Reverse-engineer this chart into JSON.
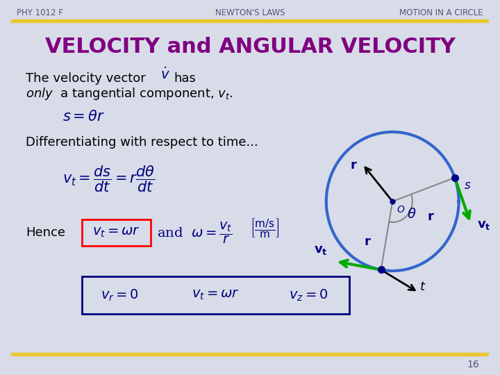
{
  "bg_color": "#d8dce8",
  "header_bar_color": "#e8c830",
  "title_text": "VELOCITY and ANGULAR VELOCITY",
  "title_color": "#800080",
  "title_fontsize": 22,
  "header_left": "PHY 1012 F",
  "header_center": "NEWTON'S LAWS",
  "header_right": "MOTION IN A CIRCLE",
  "header_color": "#555577",
  "header_fontsize": 8.5,
  "text_color": "#000080",
  "body_text_color": "#000000",
  "circle_color": "#3366cc",
  "circle_linewidth": 3.0,
  "arrow_color_green": "#00aa00",
  "arrow_color_black": "#000000",
  "arrow_color_gray": "#888888",
  "dot_color": "#00008b",
  "page_number": "16",
  "footer_bar_color": "#e8c830"
}
